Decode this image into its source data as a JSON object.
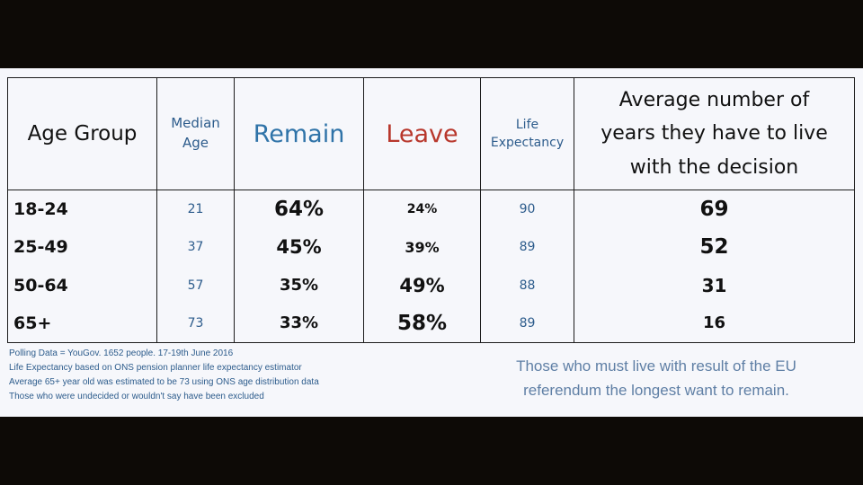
{
  "table": {
    "headers": {
      "age_group": "Age Group",
      "median_age_line1": "Median",
      "median_age_line2": "Age",
      "remain": "Remain",
      "leave": "Leave",
      "life_expectancy_line1": "Life",
      "life_expectancy_line2": "Expectancy",
      "avg_years_line1": "Average number of",
      "avg_years_line2": "years they have to live",
      "avg_years_line3": "with the decision"
    },
    "rows": [
      {
        "age_group": "18-24",
        "median_age": "21",
        "remain": "64%",
        "leave": "24%",
        "life_expectancy": "90",
        "avg_years": "69"
      },
      {
        "age_group": "25-49",
        "median_age": "37",
        "remain": "45%",
        "leave": "39%",
        "life_expectancy": "89",
        "avg_years": "52"
      },
      {
        "age_group": "50-64",
        "median_age": "57",
        "remain": "35%",
        "leave": "49%",
        "life_expectancy": "88",
        "avg_years": "31"
      },
      {
        "age_group": "65+",
        "median_age": "73",
        "remain": "33%",
        "leave": "58%",
        "life_expectancy": "89",
        "avg_years": "16"
      }
    ]
  },
  "notes": [
    "Polling Data = YouGov. 1652 people. 17-19th June 2016",
    "Life Expectancy based on ONS pension planner life expectancy estimator",
    "Average 65+ year old was estimated to be 73 using ONS age distribution data",
    "Those who were undecided or wouldn't say have been excluded"
  ],
  "caption": {
    "line1": "Those who must live with result of the EU",
    "line2": "referendum the longest want to remain."
  },
  "colors": {
    "remain": "#2f73a8",
    "leave": "#b8372c",
    "notes": "#2d5c8c",
    "caption": "#5f7fa5",
    "background": "#0d0a06",
    "panel": "#f6f7fb"
  }
}
